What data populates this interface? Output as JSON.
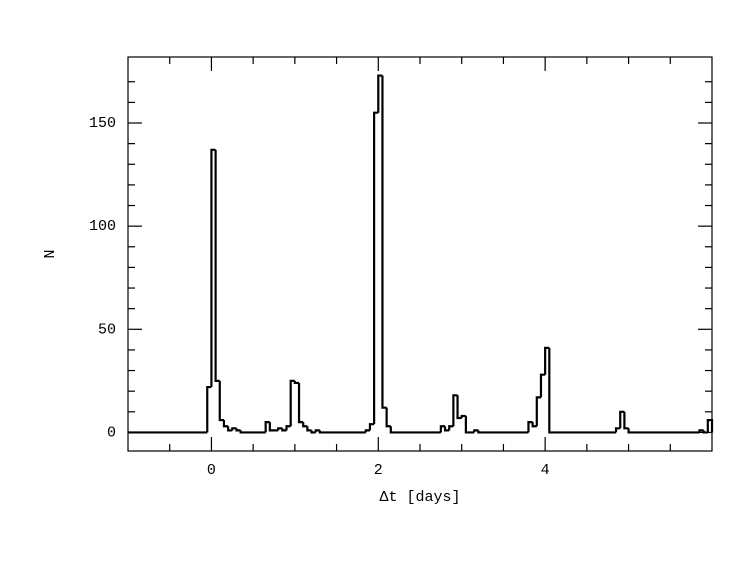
{
  "chart_data": {
    "type": "histogram",
    "x_label": "Δt [days]",
    "y_label": "N",
    "bins": [
      -1,
      -0.05,
      0,
      0.05,
      0.1,
      0.15,
      0.2,
      0.25,
      0.3,
      0.35,
      0.65,
      0.7,
      0.75,
      0.8,
      0.85,
      0.9,
      0.95,
      1.0,
      1.05,
      1.1,
      1.15,
      1.2,
      1.25,
      1.3,
      1.85,
      1.9,
      1.95,
      2.0,
      2.05,
      2.1,
      2.15,
      2.75,
      2.8,
      2.85,
      2.9,
      2.95,
      3.0,
      3.05,
      3.15,
      3.2,
      3.8,
      3.85,
      3.9,
      3.95,
      4.0,
      4.05,
      4.85,
      4.9,
      4.95,
      5.0,
      5.85,
      5.9,
      5.95,
      6.0
    ],
    "counts": [
      0,
      22,
      137,
      25,
      6,
      3,
      1,
      2,
      1,
      0,
      5,
      1,
      1,
      2,
      1,
      3,
      25,
      24,
      5,
      3,
      1,
      0,
      1,
      0,
      1,
      4,
      155,
      173,
      12,
      3,
      0,
      3,
      1,
      3,
      18,
      7,
      8,
      0,
      1,
      0,
      5,
      3,
      17,
      28,
      41,
      0,
      2,
      10,
      2,
      0,
      1,
      0,
      6
    ],
    "color": "#000000",
    "xlim": [
      -1,
      6
    ],
    "ylim": [
      -9,
      182
    ],
    "xticks": [
      0,
      2,
      4
    ],
    "yticks": [
      0,
      50,
      100,
      150
    ],
    "xminorticks": [
      -0.5,
      0.5,
      1,
      1.5,
      2.5,
      3,
      3.5,
      4.5,
      5,
      5.5
    ],
    "yminorticks": [
      10,
      20,
      30,
      40,
      60,
      70,
      80,
      90,
      110,
      120,
      130,
      140,
      160,
      170
    ]
  }
}
